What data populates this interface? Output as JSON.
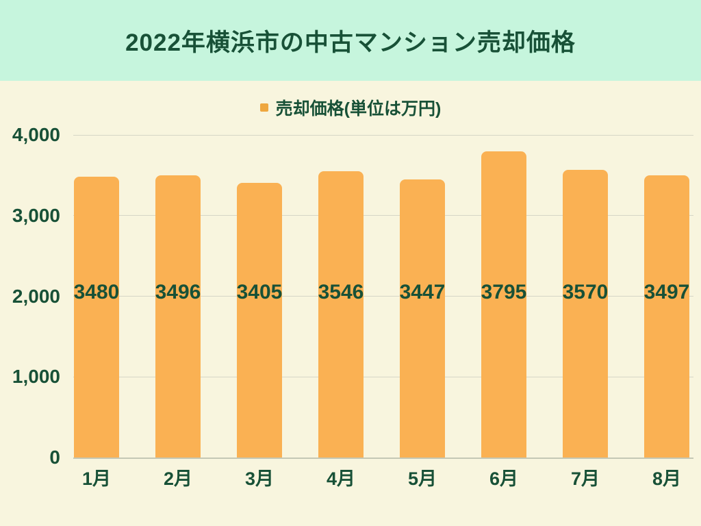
{
  "header": {
    "title": "2022年横浜市の中古マンション売却価格"
  },
  "legend": {
    "label": "売却価格(単位は万円)"
  },
  "chart_data": {
    "type": "bar",
    "title": "2022年横浜市の中古マンション売却価格",
    "categories": [
      "1月",
      "2月",
      "3月",
      "4月",
      "5月",
      "6月",
      "7月",
      "8月"
    ],
    "values": [
      3480,
      3496,
      3405,
      3546,
      3447,
      3795,
      3570,
      3497
    ],
    "series_name": "売却価格(単位は万円)",
    "xlabel": "",
    "ylabel": "",
    "ylim": [
      0,
      4000
    ],
    "yticks": [
      0,
      1000,
      2000,
      3000,
      4000
    ],
    "ytick_labels": [
      "0",
      "1,000",
      "2,000",
      "3,000",
      "4,000"
    ],
    "grid": true,
    "legend_position": "top-center",
    "data_labels": true
  },
  "colors": {
    "page_bg": "#f8f5de",
    "header_bg": "#c6f5dd",
    "bar": "#fab153",
    "legend_marker": "#eea73f",
    "text": "#185137",
    "gridline": "#d6d6c6",
    "axis_line": "#c4c7b5"
  }
}
